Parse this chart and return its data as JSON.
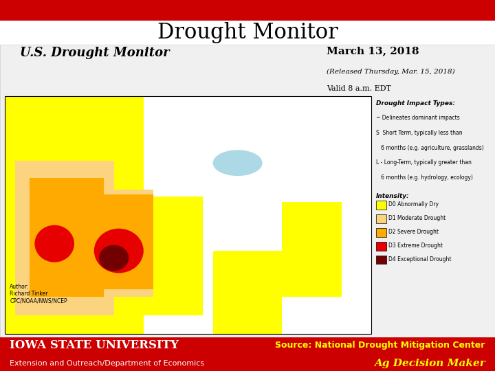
{
  "title": "Drought Monitor",
  "title_fontsize": 22,
  "title_color": "#000000",
  "top_bar_color": "#cc0000",
  "top_bar_height": 0.055,
  "bottom_bar_color": "#cc0000",
  "bottom_bar_height": 0.09,
  "map_title": "U.S. Drought Monitor",
  "map_date": "March 13, 2018",
  "map_date_sub": "(Released Thursday, Mar. 15, 2018)",
  "map_valid": "Valid 8 a.m. EDT",
  "iowas_text": "IOWA STATE UNIVERSITY",
  "iowas_text_color": "#ffffff",
  "extension_text": "Extension and Outreach/Department of Economics",
  "extension_text_color": "#ffffff",
  "source_text": "Source: National Drought Mitigation Center",
  "source_text_color": "#ffff00",
  "ag_text": "Ag Decision Maker",
  "ag_text_color": "#ffff00",
  "bg_color": "#ffffff",
  "drought_colors": {
    "D0": "#ffff00",
    "D1": "#fcd37f",
    "D2": "#ffaa00",
    "D3": "#e60000",
    "D4": "#730000"
  },
  "great_lakes_color": "#add8e6",
  "impact_texts": [
    "~ Delineates dominant impacts",
    "S  Short Term, typically less than",
    "   6 months (e.g. agriculture, grasslands)",
    "L - Long-Term, typically greater than",
    "   6 months (e.g. hydrology, ecology)"
  ],
  "legend_items": [
    [
      "D0 Abnormally Dry",
      "#ffff00"
    ],
    [
      "D1 Moderate Drought",
      "#fcd37f"
    ],
    [
      "D2 Severe Drought",
      "#ffaa00"
    ],
    [
      "D3 Extreme Drought",
      "#e60000"
    ],
    [
      "D4 Exceptional Drought",
      "#730000"
    ]
  ],
  "author_text": "Author:\nRichard Tinker\nCPC/NOAA/NWS/NCEP"
}
